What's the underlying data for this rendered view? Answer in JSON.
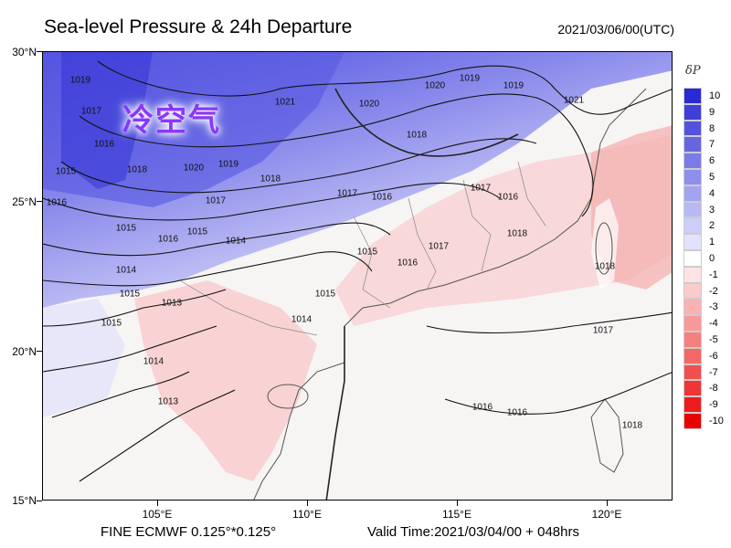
{
  "header": {
    "title": "Sea-level Pressure & 24h Departure",
    "datetime": "2021/03/06/00(UTC)"
  },
  "annotation": {
    "cold_air_label": "冷空气",
    "cold_air_color": "#8a36ff"
  },
  "axes": {
    "lat_labels": [
      "30°N",
      "25°N",
      "20°N",
      "15°N"
    ],
    "lon_labels": [
      "105°E",
      "110°E",
      "115°E",
      "120°E"
    ]
  },
  "footer": {
    "model": "FINE ECMWF 0.125°*0.125°",
    "valid_time": "Valid Time:2021/03/04/00 + 048hrs"
  },
  "colorbar": {
    "title": "δP",
    "levels": [
      "10",
      "9",
      "8",
      "7",
      "6",
      "5",
      "4",
      "3",
      "2",
      "1",
      "0",
      "-1",
      "-2",
      "-3",
      "-4",
      "-5",
      "-6",
      "-7",
      "-8",
      "-9",
      "-10"
    ],
    "colors": [
      "#2a2ad4",
      "#3e3ed9",
      "#5252de",
      "#6666e3",
      "#7a7ae8",
      "#8f8fed",
      "#a3a3f1",
      "#b8b8f5",
      "#cdcdf9",
      "#e2e2fc",
      "#ffffff",
      "#fde3e3",
      "#fbcaca",
      "#f9b2b2",
      "#f79999",
      "#f58080",
      "#f36767",
      "#f14e4e",
      "#ef3535",
      "#ed1c1c",
      "#e80000"
    ]
  },
  "isobar_labels": [
    "1019",
    "1017",
    "1016",
    "1015",
    "1016",
    "1018",
    "1020",
    "1019",
    "1018",
    "1021",
    "1020",
    "1020",
    "1019",
    "1019",
    "1021",
    "1018",
    "1017",
    "1017",
    "1015",
    "1016",
    "1015",
    "1014",
    "1014",
    "1015",
    "1015",
    "1013",
    "1015",
    "1014",
    "1013",
    "1014",
    "1015",
    "1017",
    "1016",
    "1017",
    "1018",
    "1016",
    "1016",
    "1017",
    "1018",
    "1016",
    "1016",
    "1018"
  ]
}
